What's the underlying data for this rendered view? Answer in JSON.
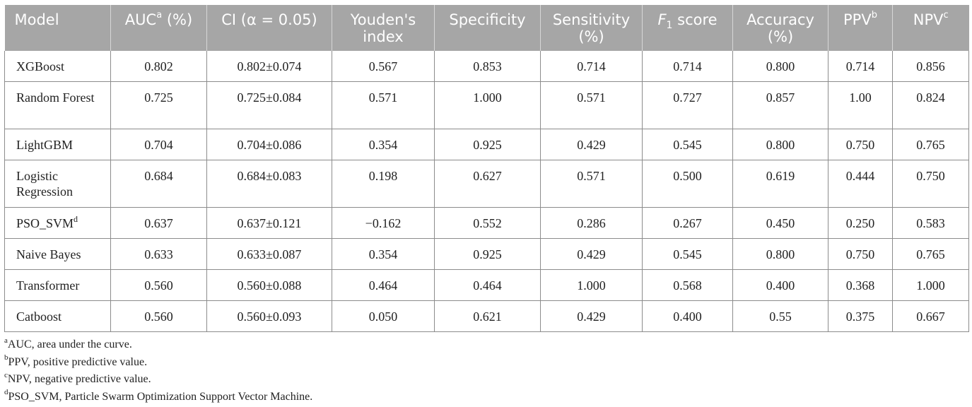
{
  "table": {
    "headers": [
      {
        "text": "Model",
        "sup": ""
      },
      {
        "text": "AUC",
        "sup": "a",
        "suffix": " (%)"
      },
      {
        "text": "CI (α = 0.05)",
        "sup": ""
      },
      {
        "text": "Youden's index",
        "sup": ""
      },
      {
        "text": "Specificity",
        "sup": ""
      },
      {
        "text": "Sensitivity (%)",
        "sup": ""
      },
      {
        "text": "F",
        "sub": "1",
        "suffix": " score"
      },
      {
        "text": "Accuracy (%)",
        "sup": ""
      },
      {
        "text": "PPV",
        "sup": "b"
      },
      {
        "text": "NPV",
        "sup": "c"
      }
    ],
    "rows": [
      {
        "model": "XGBoost",
        "model_sup": "",
        "cells": [
          "0.802",
          "0.802±0.074",
          "0.567",
          "0.853",
          "0.714",
          "0.714",
          "0.800",
          "0.714",
          "0.856"
        ]
      },
      {
        "model": "Random Forest",
        "model_sup": "",
        "cells": [
          "0.725",
          "0.725±0.084",
          "0.571",
          "1.000",
          "0.571",
          "0.727",
          "0.857",
          "1.00",
          "0.824"
        ]
      },
      {
        "model": "LightGBM",
        "model_sup": "",
        "cells": [
          "0.704",
          "0.704±0.086",
          "0.354",
          "0.925",
          "0.429",
          "0.545",
          "0.800",
          "0.750",
          "0.765"
        ]
      },
      {
        "model": "Logistic Regression",
        "model_sup": "",
        "cells": [
          "0.684",
          "0.684±0.083",
          "0.198",
          "0.627",
          "0.571",
          "0.500",
          "0.619",
          "0.444",
          "0.750"
        ]
      },
      {
        "model": "PSO_SVM",
        "model_sup": "d",
        "cells": [
          "0.637",
          "0.637±0.121",
          "−0.162",
          "0.552",
          "0.286",
          "0.267",
          "0.450",
          "0.250",
          "0.583"
        ]
      },
      {
        "model": "Naive Bayes",
        "model_sup": "",
        "cells": [
          "0.633",
          "0.633±0.087",
          "0.354",
          "0.925",
          "0.429",
          "0.545",
          "0.800",
          "0.750",
          "0.765"
        ]
      },
      {
        "model": "Transformer",
        "model_sup": "",
        "cells": [
          "0.560",
          "0.560±0.088",
          "0.464",
          "0.464",
          "1.000",
          "0.568",
          "0.400",
          "0.368",
          "1.000"
        ]
      },
      {
        "model": "Catboost",
        "model_sup": "",
        "cells": [
          "0.560",
          "0.560±0.093",
          "0.050",
          "0.621",
          "0.429",
          "0.400",
          "0.55",
          "0.375",
          "0.667"
        ]
      }
    ]
  },
  "footnotes": [
    {
      "mark": "a",
      "text": "AUC, area under the curve."
    },
    {
      "mark": "b",
      "text": "PPV, positive predictive value."
    },
    {
      "mark": "c",
      "text": "NPV, negative predictive value."
    },
    {
      "mark": "d",
      "text": "PSO_SVM, Particle Swarm Optimization Support Vector Machine."
    }
  ]
}
